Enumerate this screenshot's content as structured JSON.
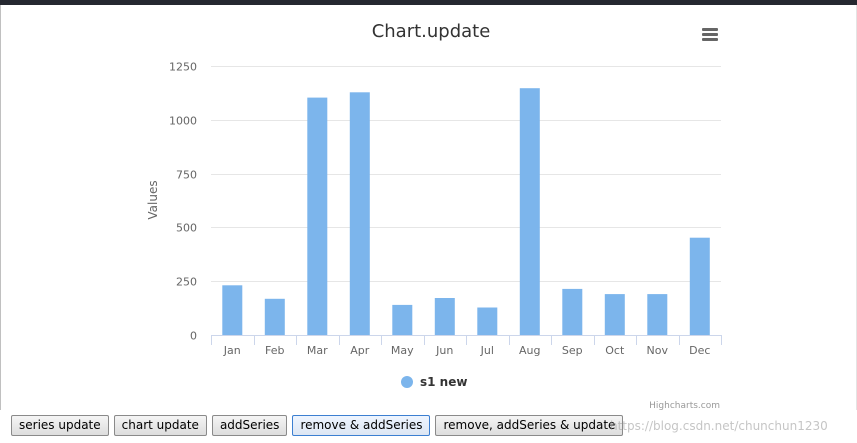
{
  "chart_data": {
    "type": "bar",
    "title": "Chart.update",
    "ylabel": "Values",
    "xlabel": "",
    "categories": [
      "Jan",
      "Feb",
      "Mar",
      "Apr",
      "May",
      "Jun",
      "Jul",
      "Aug",
      "Sep",
      "Oct",
      "Nov",
      "Dec"
    ],
    "series": [
      {
        "name": "s1 new",
        "color": "#7cb5ec",
        "values": [
          231,
          168,
          1103,
          1128,
          140,
          172,
          128,
          1147,
          214,
          190,
          190,
          452
        ]
      }
    ],
    "ylim": [
      0,
      1250
    ],
    "yticks": [
      "0",
      "250",
      "500",
      "750",
      "1000",
      "1250"
    ],
    "grid": true,
    "legend": "bottom-center"
  },
  "credits": "Highcharts.com",
  "menu_icon": "hamburger-menu-icon",
  "buttons": {
    "series_update": "series update",
    "chart_update": "chart update",
    "add_series": "addSeries",
    "remove_add_series": "remove & addSeries",
    "remove_add_series_update": "remove, addSeries & update"
  },
  "watermark": "https://blog.csdn.net/chunchun1230"
}
